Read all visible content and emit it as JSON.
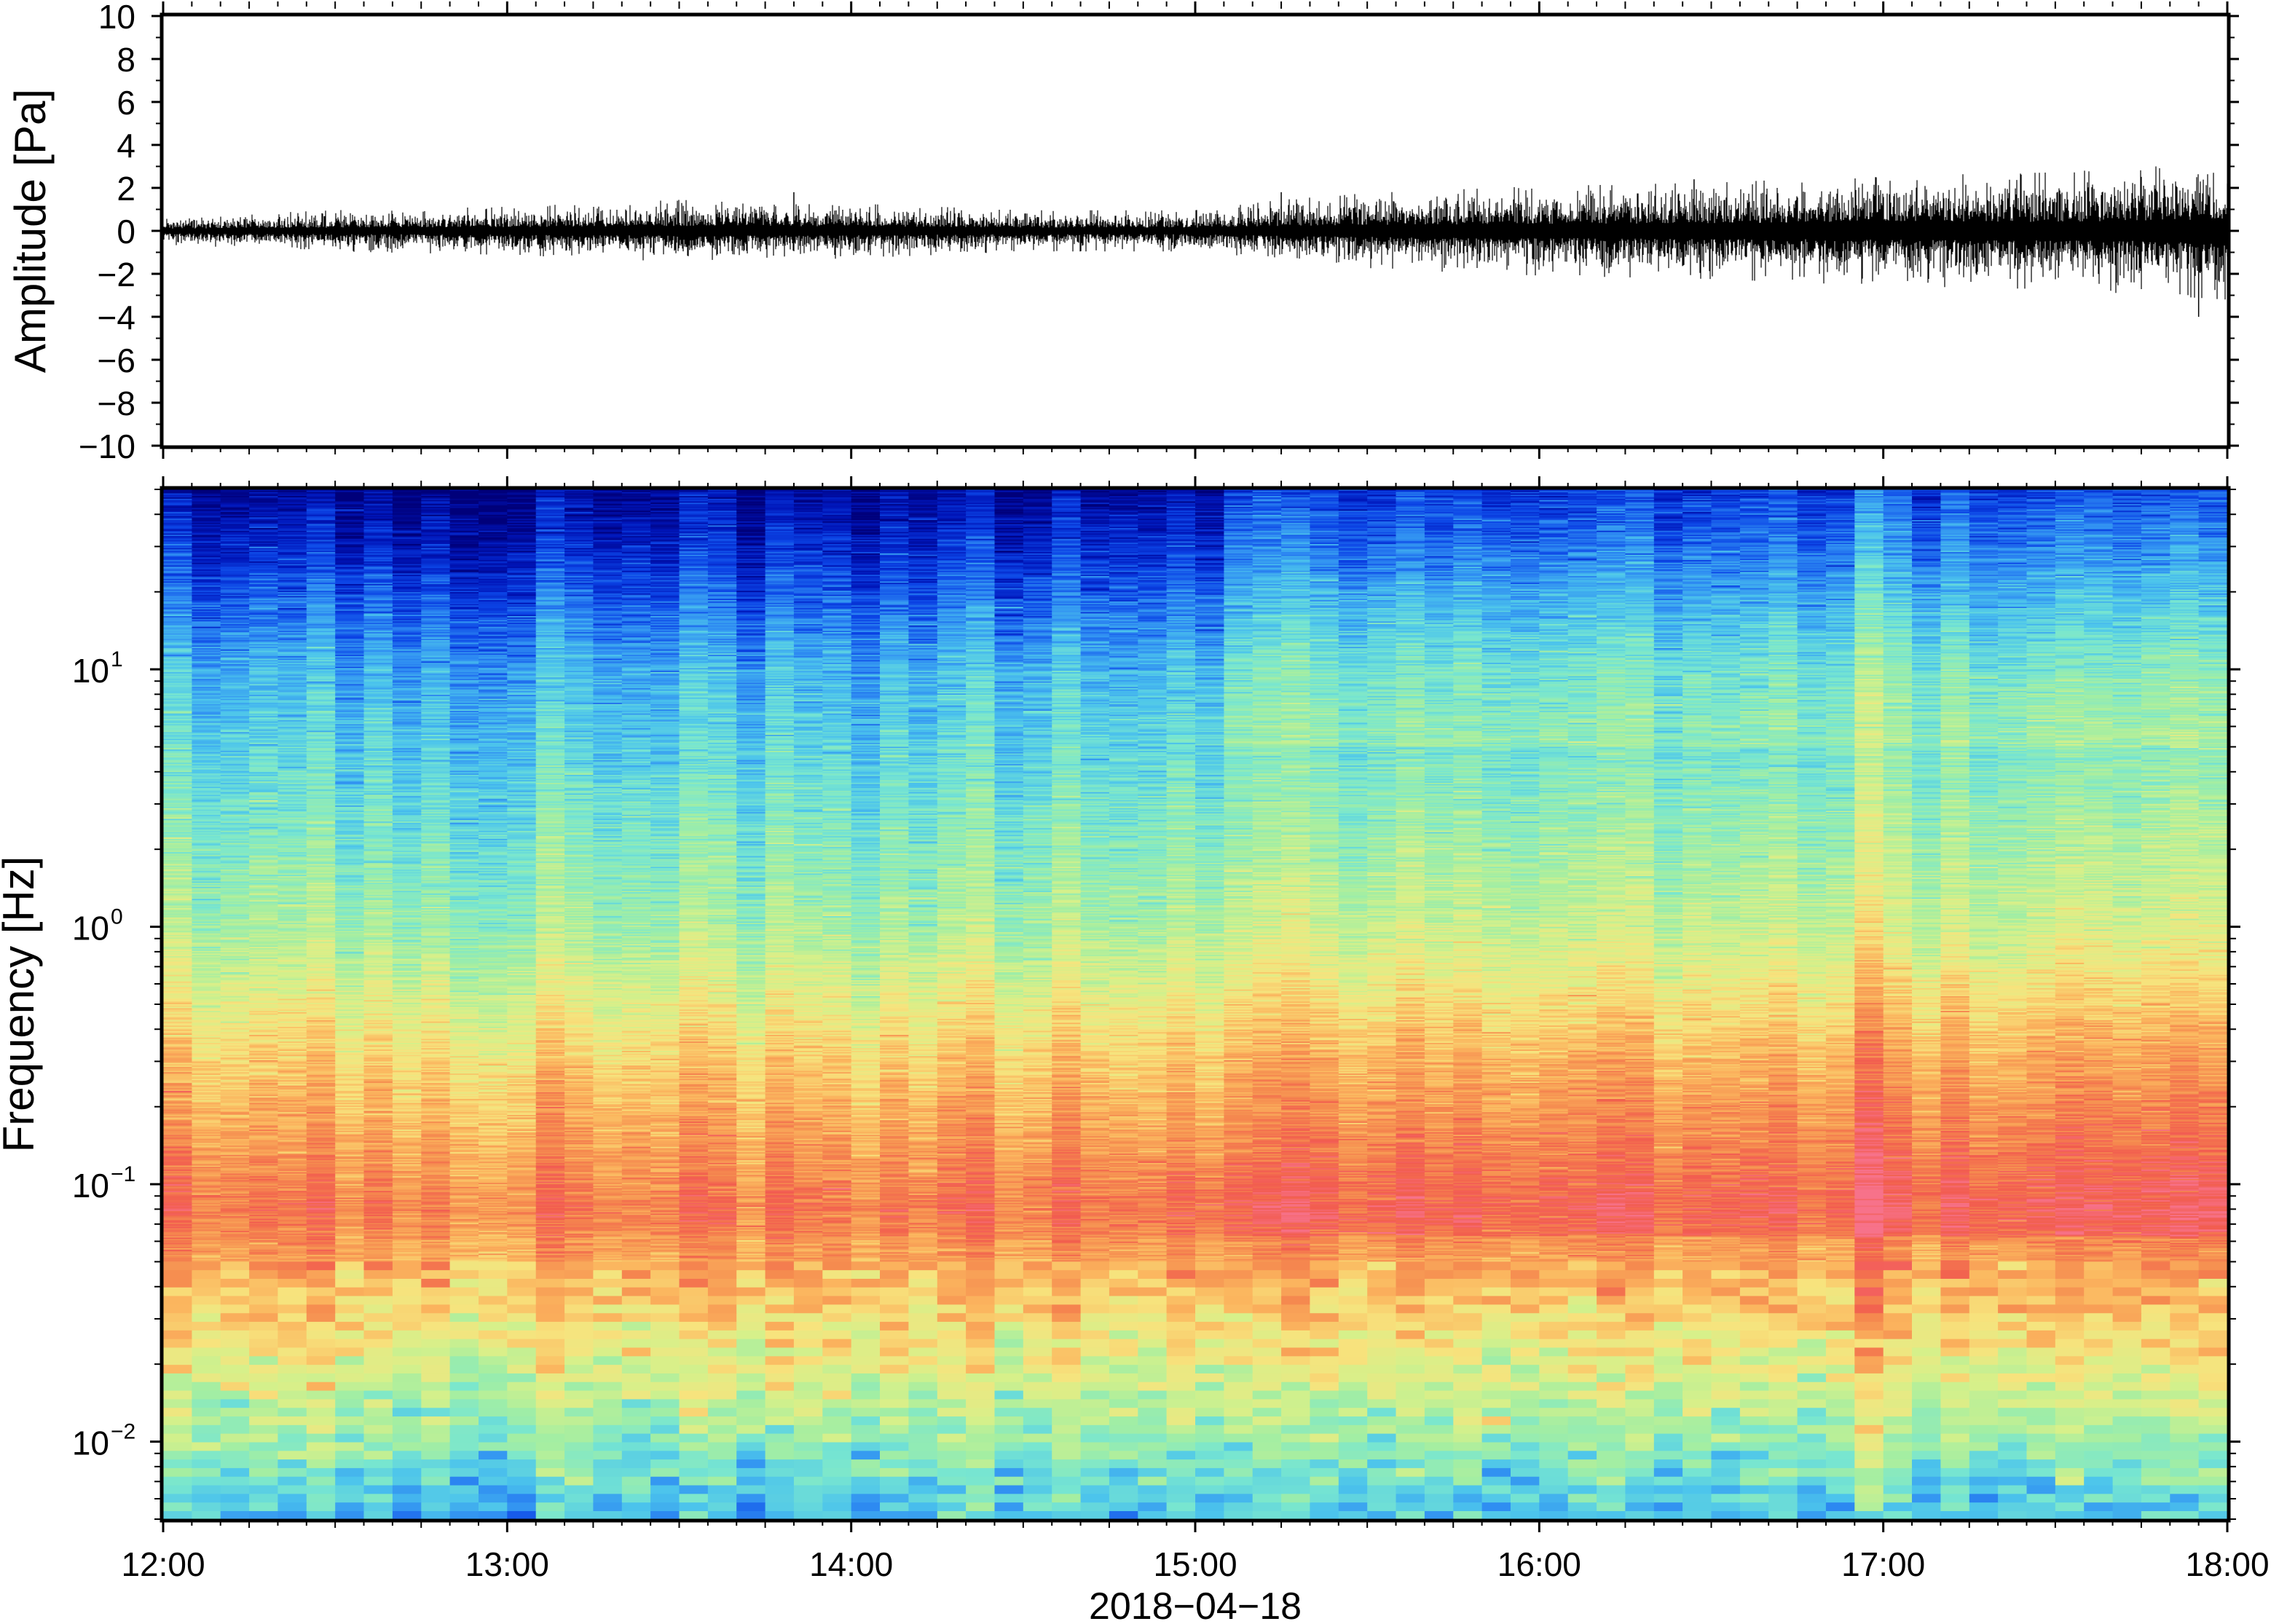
{
  "chart_data": [
    {
      "type": "line",
      "panel": "waveform",
      "ylabel": "Amplitude [Pa]",
      "ylim": [
        -10,
        10
      ],
      "yticks": [
        10,
        8,
        6,
        4,
        2,
        0,
        -2,
        -4,
        -6,
        -8,
        -10
      ],
      "ytick_labels": [
        "10",
        "8",
        "6",
        "4",
        "2",
        "0",
        "−2",
        "−4",
        "−6",
        "−8",
        "−10"
      ],
      "xlim": [
        "12:00",
        "18:00"
      ],
      "series": [
        {
          "hours": [
            12.0,
            12.5,
            13.0,
            13.5,
            14.0,
            14.5,
            15.0,
            15.25,
            15.5,
            16.0,
            16.5,
            17.0,
            17.5,
            18.0
          ],
          "envelope_pa": [
            0.4,
            0.6,
            0.7,
            0.9,
            0.8,
            0.6,
            0.6,
            0.9,
            1.1,
            1.3,
            1.4,
            1.6,
            1.7,
            2.0
          ]
        }
      ],
      "peaks": [
        {
          "time": "13:50",
          "value_pa": 1.8
        },
        {
          "time": "15:15",
          "value_pa": 1.8
        },
        {
          "time": "16:27",
          "value_pa": 2.4
        },
        {
          "time": "17:55",
          "value_pa": -4.0
        }
      ],
      "grid": false
    },
    {
      "type": "heatmap",
      "panel": "spectrogram",
      "ylabel": "Frequency [Hz]",
      "y_scale": "log",
      "ylim_hz": [
        0.005,
        50
      ],
      "ytick_labels": [
        {
          "base": "10",
          "exp": "1",
          "value": 10
        },
        {
          "base": "10",
          "exp": "0",
          "value": 1
        },
        {
          "base": "10",
          "exp": "−1",
          "value": 0.1
        },
        {
          "base": "10",
          "exp": "−2",
          "value": 0.01
        }
      ],
      "colormap": [
        "#00007a",
        "#0015b8",
        "#0c45e6",
        "#2f8df2",
        "#4cc4ec",
        "#78e6d0",
        "#a4eea2",
        "#d6f08a",
        "#f7e37d",
        "#fbb55e",
        "#f58a4f",
        "#f25c4f",
        "#f7728a"
      ],
      "x_ticks": [
        "12:00",
        "13:00",
        "14:00",
        "15:00",
        "16:00",
        "17:00",
        "18:00"
      ],
      "xlabel": "2018−04−18",
      "grid": false
    }
  ]
}
